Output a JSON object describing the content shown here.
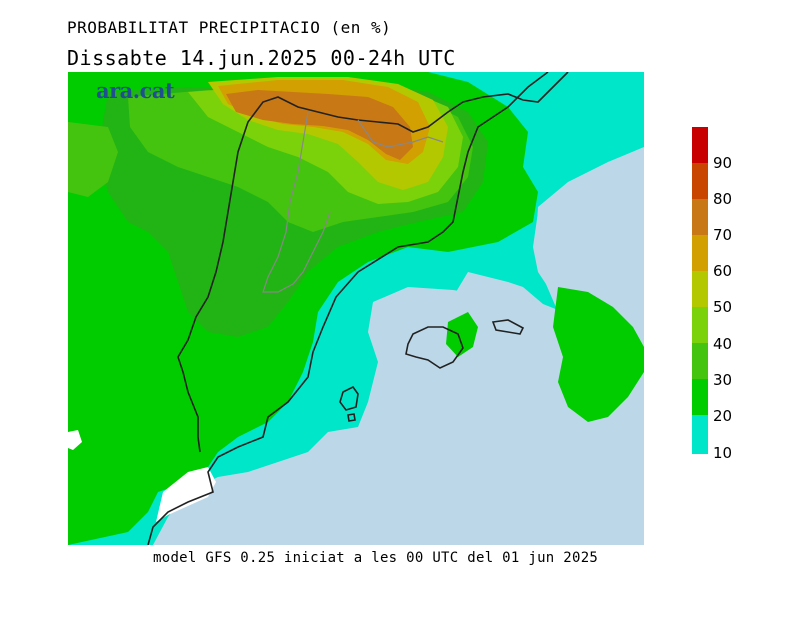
{
  "header": {
    "title": "PROBABILITAT PRECIPITACIO (en %)",
    "subtitle": "Dissabte   14.jun.2025 00-24h UTC"
  },
  "map": {
    "logo_text": "ara.cat",
    "colors": {
      "10": "#00e6c8",
      "20": "#00cc00",
      "30": "#22b414",
      "40": "#44c40e",
      "50": "#7cd20a",
      "60": "#b4c800",
      "70": "#d2a000",
      "80": "#c87814",
      "90": "#c84600",
      "100": "#c80000",
      "sea_low": "#bcd8e8",
      "background": "#ffffff"
    }
  },
  "legend": {
    "labels": [
      "90",
      "80",
      "70",
      "60",
      "50",
      "40",
      "30",
      "20",
      "10"
    ]
  },
  "footer": {
    "text": "model GFS 0.25 iniciat a les 00 UTC del 01 jun 2025"
  }
}
